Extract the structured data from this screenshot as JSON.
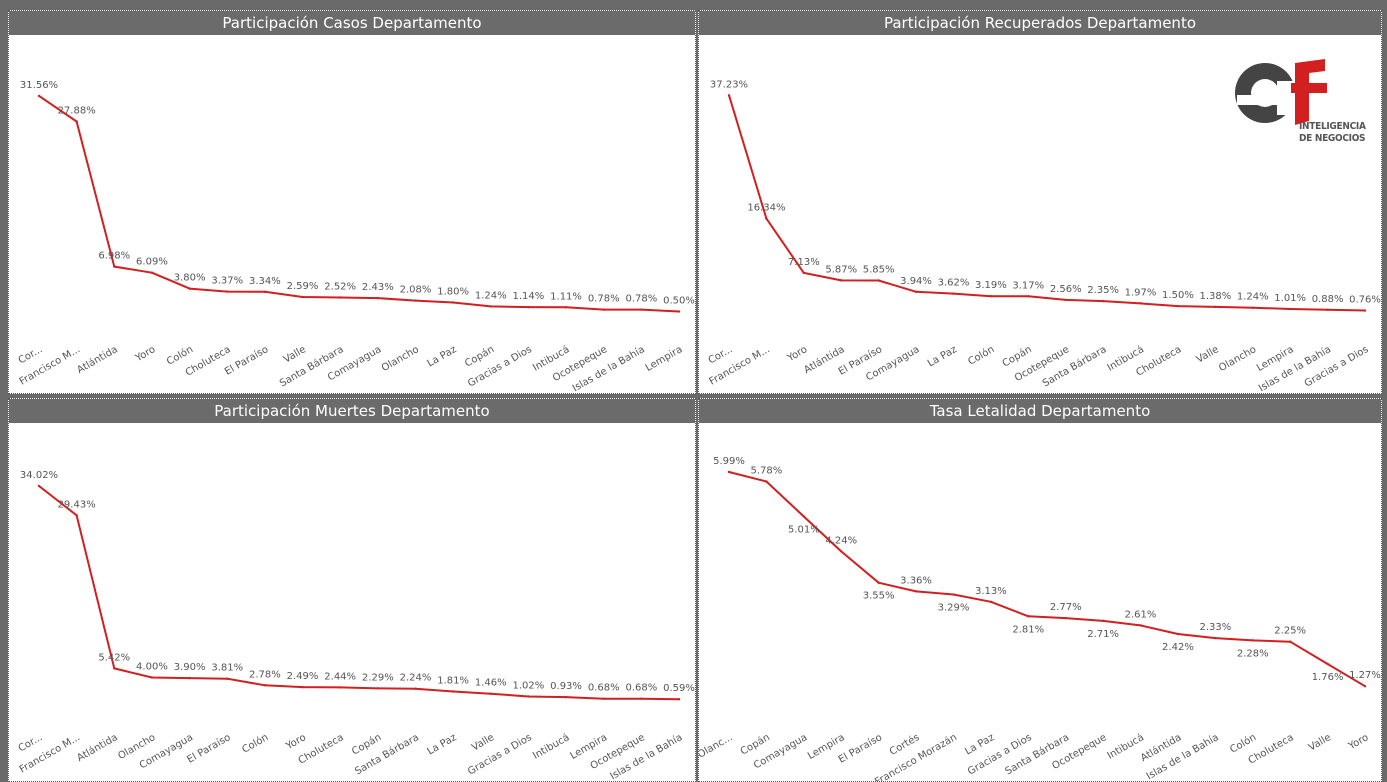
{
  "colors": {
    "line": "#d21f1f",
    "text": "#555555",
    "title_bg": "#6b6b6b",
    "title_fg": "#ffffff"
  },
  "logo": {
    "line1": "INTELIGENCIA",
    "line2": "DE NEGOCIOS"
  },
  "chart_data": [
    {
      "type": "line",
      "title": "Participación Casos Departamento",
      "categories": [
        "Cor...",
        "Francisco M...",
        "Atlántida",
        "Yoro",
        "Colón",
        "Choluteca",
        "El Paraíso",
        "Valle",
        "Santa Bárbara",
        "Comayagua",
        "Olancho",
        "La Paz",
        "Copán",
        "Gracias a Dios",
        "Intibucá",
        "Ocotepeque",
        "Islas de la Bahía",
        "Lempira"
      ],
      "values": [
        31.56,
        27.88,
        6.98,
        6.09,
        3.8,
        3.37,
        3.34,
        2.59,
        2.52,
        2.43,
        2.08,
        1.8,
        1.24,
        1.14,
        1.11,
        0.78,
        0.78,
        0.5
      ],
      "labels": [
        "31.56%",
        "27.88%",
        "6.98%",
        "6.09%",
        "3.80%",
        "3.37%",
        "3.34%",
        "2.59%",
        "2.52%",
        "2.43%",
        "2.08%",
        "1.80%",
        "1.24%",
        "1.14%",
        "1.11%",
        "0.78%",
        "0.78%",
        "0.50%"
      ],
      "ylim": [
        0,
        34
      ]
    },
    {
      "type": "line",
      "title": "Participación Recuperados Departamento",
      "categories": [
        "Cor...",
        "Francisco M...",
        "Yoro",
        "Atlántida",
        "El Paraíso",
        "Comayagua",
        "La Paz",
        "Colón",
        "Copán",
        "Ocotepeque",
        "Santa Bárbara",
        "Intibucá",
        "Choluteca",
        "Valle",
        "Olancho",
        "Lempira",
        "Islas de la Bahía",
        "Gracias a Dios"
      ],
      "values": [
        37.23,
        16.34,
        7.13,
        5.87,
        5.85,
        3.94,
        3.62,
        3.19,
        3.17,
        2.56,
        2.35,
        1.97,
        1.5,
        1.38,
        1.24,
        1.01,
        0.88,
        0.76
      ],
      "labels": [
        "37.23%",
        "16.34%",
        "7.13%",
        "5.87%",
        "5.85%",
        "3.94%",
        "3.62%",
        "3.19%",
        "3.17%",
        "2.56%",
        "2.35%",
        "1.97%",
        "1.50%",
        "1.38%",
        "1.24%",
        "1.01%",
        "0.88%",
        "0.76%"
      ],
      "ylim": [
        0,
        40
      ]
    },
    {
      "type": "line",
      "title": "Participación Muertes Departamento",
      "categories": [
        "Cor...",
        "Francisco M...",
        "Atlántida",
        "Olancho",
        "Comayagua",
        "El Paraíso",
        "Colón",
        "Yoro",
        "Choluteca",
        "Copán",
        "Santa Bárbara",
        "La Paz",
        "Valle",
        "Gracias a Dios",
        "Intibucá",
        "Lempira",
        "Ocotepeque",
        "Islas de la Bahía"
      ],
      "values": [
        34.02,
        29.43,
        5.42,
        4.0,
        3.9,
        3.81,
        2.78,
        2.49,
        2.44,
        2.29,
        2.24,
        1.81,
        1.46,
        1.02,
        0.93,
        0.68,
        0.68,
        0.59
      ],
      "labels": [
        "34.02%",
        "29.43%",
        "5.42%",
        "4.00%",
        "3.90%",
        "3.81%",
        "2.78%",
        "2.49%",
        "2.44%",
        "2.29%",
        "2.24%",
        "1.81%",
        "1.46%",
        "1.02%",
        "0.93%",
        "0.68%",
        "0.68%",
        "0.59%"
      ],
      "ylim": [
        0,
        37
      ]
    },
    {
      "type": "line",
      "title": "Tasa Letalidad Departamento",
      "categories": [
        "Olanc...",
        "Copán",
        "Comayagua",
        "Lempira",
        "El Paraíso",
        "Cortés",
        "Francisco Morazán",
        "La Paz",
        "Gracias a Dios",
        "Santa Bárbara",
        "Ocotepeque",
        "Intibucá",
        "Atlántida",
        "Islas de la Bahía",
        "Colón",
        "Choluteca",
        "Valle",
        "Yoro"
      ],
      "values": [
        5.99,
        5.78,
        5.01,
        4.24,
        3.55,
        3.36,
        3.29,
        3.13,
        2.81,
        2.77,
        2.71,
        2.61,
        2.42,
        2.33,
        2.28,
        2.25,
        1.76,
        1.27
      ],
      "labels": [
        "5.99%",
        "5.78%",
        "5.01%",
        "4.24%",
        "3.55%",
        "3.36%",
        "3.29%",
        "3.13%",
        "2.81%",
        "2.77%",
        "2.71%",
        "2.61%",
        "2.42%",
        "2.33%",
        "2.28%",
        "2.25%",
        "1.76%",
        "1.27%"
      ],
      "ylim": [
        0.9,
        6.1
      ]
    }
  ]
}
